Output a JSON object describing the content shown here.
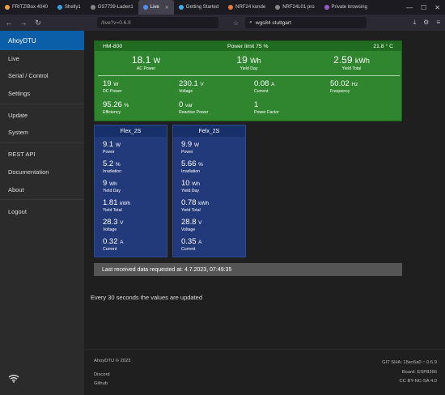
{
  "browser": {
    "tabs": [
      {
        "label": "FRITZ!Box 4040",
        "fav": "#f4a23c"
      },
      {
        "label": "Shelly1",
        "fav": "#3aa0e0"
      },
      {
        "label": "GS7739-Laden1",
        "fav": "#888888"
      },
      {
        "label": "Live",
        "fav": "#5a8de8",
        "active": true
      },
      {
        "label": "Getting Started",
        "fav": "#3ab0e8"
      },
      {
        "label": "NRF24 konde",
        "fav": "#e87a3a"
      },
      {
        "label": "NRF24L01 pro",
        "fav": "#888888"
      },
      {
        "label": "Private browsing",
        "fav": "#9b59d0"
      }
    ],
    "url": "/live?v=0.6.9",
    "search": "wgs84 stuttgart"
  },
  "sidebar": {
    "brand": "AhoyDTU",
    "items": [
      "Live",
      "Serial / Control",
      "Settings",
      "Update",
      "System",
      "REST API",
      "Documentation",
      "About",
      "Logout"
    ]
  },
  "inverter": {
    "name": "HM-800",
    "power_limit": "Power limit 75 %",
    "temperature": "21.8 ° C",
    "big": [
      {
        "value": "18.1",
        "unit": "W",
        "label": "AC Power"
      },
      {
        "value": "19",
        "unit": "Wh",
        "label": "Yield Day"
      },
      {
        "value": "2.59",
        "unit": "kWh",
        "label": "Yield Total"
      }
    ],
    "small": [
      {
        "value": "19",
        "unit": "W",
        "label": "DC Power"
      },
      {
        "value": "230.1",
        "unit": "V",
        "label": "Voltage"
      },
      {
        "value": "0.08",
        "unit": "A",
        "label": "Current"
      },
      {
        "value": "50.02",
        "unit": "Hz",
        "label": "Frequency"
      },
      {
        "value": "95.26",
        "unit": "%",
        "label": "Efficiency"
      },
      {
        "value": "0",
        "unit": "var",
        "label": "Reactive Power"
      },
      {
        "value": "1",
        "unit": "",
        "label": "Power Factor"
      }
    ]
  },
  "panels": [
    {
      "name": "Flex_2S",
      "values": [
        {
          "value": "9.1",
          "unit": "W",
          "label": "Power"
        },
        {
          "value": "5.2",
          "unit": "%",
          "label": "Irradiation"
        },
        {
          "value": "9",
          "unit": "Wh",
          "label": "Yield Day"
        },
        {
          "value": "1.81",
          "unit": "kWh",
          "label": "Yield Total"
        },
        {
          "value": "28.3",
          "unit": "V",
          "label": "Voltage"
        },
        {
          "value": "0.32",
          "unit": "A",
          "label": "Current"
        }
      ]
    },
    {
      "name": "Felx_2S",
      "values": [
        {
          "value": "9.9",
          "unit": "W",
          "label": "Power"
        },
        {
          "value": "5.66",
          "unit": "%",
          "label": "Irradiation"
        },
        {
          "value": "10",
          "unit": "Wh",
          "label": "Yield Day"
        },
        {
          "value": "0.78",
          "unit": "kWh",
          "label": "Yield Total"
        },
        {
          "value": "28.8",
          "unit": "V",
          "label": "Voltage"
        },
        {
          "value": "0.35",
          "unit": "A",
          "label": "Current"
        }
      ]
    }
  ],
  "status": "Last received data requested at: 4.7.2023, 07:49:35",
  "note": "Every 30 seconds the values are updated",
  "footer": {
    "copyright": "AhoyDTU © 2023",
    "discord": "Discord",
    "github": "Github",
    "git": "GIT SHA: 15ec6a0 :: 0.6.9",
    "board": "Board: ESP8266",
    "license": "CC BY-NC-SA 4.0"
  }
}
